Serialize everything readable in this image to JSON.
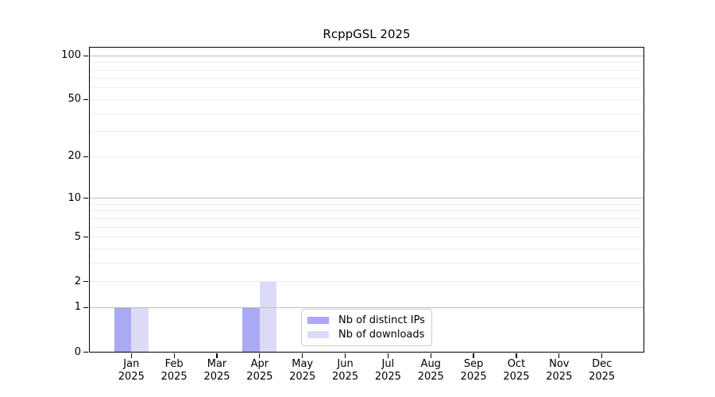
{
  "title": "RcppGSL 2025",
  "chart_data": {
    "type": "bar",
    "title": "RcppGSL 2025",
    "categories": [
      "Jan",
      "Feb",
      "Mar",
      "Apr",
      "May",
      "Jun",
      "Jul",
      "Aug",
      "Sep",
      "Oct",
      "Nov",
      "Dec"
    ],
    "category_year": "2025",
    "series": [
      {
        "name": "Nb of distinct IPs",
        "color": "#a9a9f4",
        "values": [
          1,
          0,
          0,
          1,
          0,
          0,
          0,
          0,
          0,
          0,
          0,
          0
        ]
      },
      {
        "name": "Nb of downloads",
        "color": "#dbdbf8",
        "values": [
          1,
          0,
          0,
          2,
          0,
          0,
          0,
          0,
          0,
          0,
          0,
          0
        ]
      }
    ],
    "xlabel": "",
    "ylabel": "",
    "yscale": "log1p",
    "ylim": [
      0,
      115
    ],
    "yticks": [
      0,
      1,
      2,
      5,
      10,
      20,
      50,
      100
    ],
    "grid": {
      "major": [
        1,
        10,
        100
      ],
      "minor": [
        2,
        3,
        4,
        5,
        6,
        7,
        8,
        9,
        20,
        30,
        40,
        50,
        60,
        70,
        80,
        90
      ],
      "major_color": "#bdbdbd",
      "minor_color": "#ececec"
    },
    "legend_position": "inside-bottom-center",
    "bar_series_layout": "side-by-side-centered-on-tick"
  }
}
